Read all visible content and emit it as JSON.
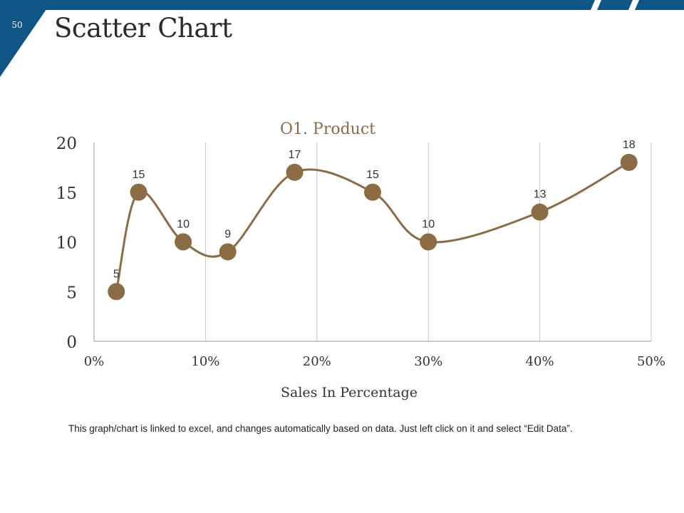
{
  "slide": {
    "page_number": "50",
    "title": "Scatter Chart",
    "footnote": "This graph/chart is linked to excel, and changes automatically based on data. Just left click on it and select “Edit Data”.",
    "colors": {
      "banner": "#0f5585",
      "accent": "#8b6c45",
      "gridline": "#c8c8c8"
    }
  },
  "chart_data": {
    "type": "scatter",
    "title": "O1. Product",
    "xlabel": "Sales In Percentage",
    "ylabel": "",
    "xlim": [
      0,
      50
    ],
    "ylim": [
      0,
      20
    ],
    "x_ticks": [
      "0%",
      "10%",
      "20%",
      "30%",
      "40%",
      "50%"
    ],
    "y_ticks": [
      "0",
      "5",
      "10",
      "15",
      "20"
    ],
    "x_grid": true,
    "y_grid": false,
    "legend": "none",
    "smooth_line": true,
    "series": [
      {
        "color": "#8b6c45",
        "x": [
          2,
          4,
          8,
          12,
          18,
          25,
          30,
          40,
          48
        ],
        "y": [
          5,
          15,
          10,
          9,
          17,
          15,
          10,
          13,
          18
        ],
        "labels": [
          "5",
          "15",
          "10",
          "9",
          "17",
          "15",
          "10",
          "13",
          "18"
        ]
      }
    ]
  }
}
